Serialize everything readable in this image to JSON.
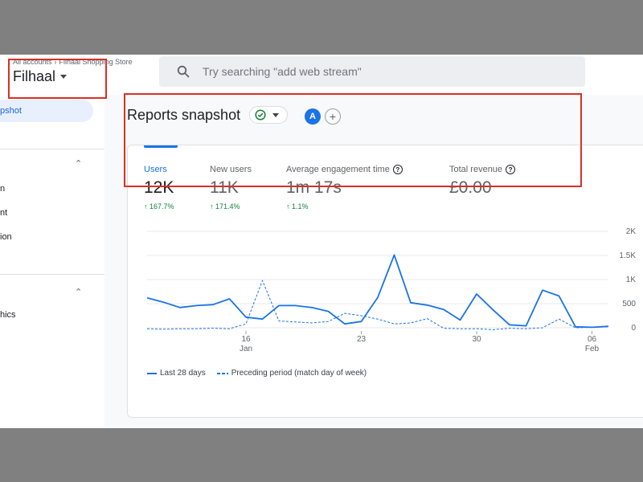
{
  "topbar": {
    "breadcrumb": [
      "All accounts",
      "Filhaal Shopping Store"
    ],
    "breadcrumb_separator": "›",
    "property": "Filhaal",
    "search_placeholder": "Try searching \"add web stream\"",
    "highlight_color": "#d93025"
  },
  "sidebar": {
    "active_item": "pshot",
    "items": [
      "n",
      "nt",
      "ion",
      "hics"
    ]
  },
  "page": {
    "title": "Reports snapshot",
    "avatar_letter": "A",
    "add_label": "+"
  },
  "metrics": [
    {
      "label": "Users",
      "value": "12K",
      "delta": "167.7%",
      "info": false
    },
    {
      "label": "New users",
      "value": "11K",
      "delta": "171.4%",
      "info": false
    },
    {
      "label": "Average engagement time",
      "value": "1m 17s",
      "delta": "1.1%",
      "info": true
    },
    {
      "label": "Total revenue",
      "value": "£0.00",
      "delta": "",
      "info": true
    }
  ],
  "chart_data": {
    "type": "line",
    "x": [
      "Jan 10",
      "Jan 11",
      "Jan 12",
      "Jan 13",
      "Jan 14",
      "Jan 15",
      "Jan 16",
      "Jan 17",
      "Jan 18",
      "Jan 19",
      "Jan 20",
      "Jan 21",
      "Jan 22",
      "Jan 23",
      "Jan 24",
      "Jan 25",
      "Jan 26",
      "Jan 27",
      "Jan 28",
      "Jan 29",
      "Jan 30",
      "Jan 31",
      "Feb 1",
      "Feb 2",
      "Feb 3",
      "Feb 4",
      "Feb 5",
      "Feb 6",
      "Feb 7"
    ],
    "x_tick_labels": [
      {
        "day": "16",
        "month": "Jan"
      },
      {
        "day": "23",
        "month": ""
      },
      {
        "day": "30",
        "month": ""
      },
      {
        "day": "06",
        "month": "Feb"
      }
    ],
    "y_ticks": [
      "2K",
      "1.5K",
      "1K",
      "500",
      "0"
    ],
    "ylim": [
      0,
      2000
    ],
    "series": [
      {
        "name": "Last 28 days",
        "color": "#1a73e8",
        "dashed": false,
        "values": [
          620,
          530,
          420,
          460,
          480,
          600,
          220,
          180,
          460,
          460,
          420,
          340,
          80,
          130,
          630,
          1510,
          520,
          470,
          380,
          160,
          700,
          370,
          60,
          40,
          780,
          660,
          20,
          10,
          30
        ]
      },
      {
        "name": "Preceding period (match day of week)",
        "color": "#1a73e8",
        "dashed": true,
        "values": [
          -20,
          -30,
          -20,
          -20,
          -10,
          -20,
          80,
          980,
          140,
          120,
          100,
          130,
          300,
          250,
          180,
          80,
          100,
          190,
          -10,
          -20,
          -20,
          -40,
          -10,
          -20,
          0,
          180,
          0,
          10,
          20
        ]
      }
    ]
  }
}
